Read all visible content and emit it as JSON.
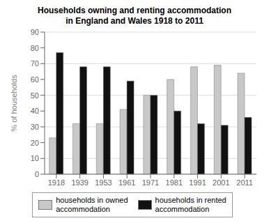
{
  "chart_data": {
    "type": "bar",
    "title": "Households owning and renting accommodation\nin England and Wales 1918 to 2011",
    "categories": [
      "1918",
      "1939",
      "1953",
      "1961",
      "1971",
      "1981",
      "1991",
      "2001",
      "2011"
    ],
    "series": [
      {
        "name": "households in owned\naccommodation",
        "color": "#c8c8c8",
        "values": [
          23,
          32,
          32,
          41,
          50,
          60,
          68,
          69,
          64
        ]
      },
      {
        "name": "households in rented\naccommodation",
        "color": "#111111",
        "values": [
          77,
          68,
          68,
          59,
          50,
          40,
          32,
          31,
          36
        ]
      }
    ],
    "ylabel": "% of households",
    "ylim": [
      0,
      90
    ],
    "yticks": [
      0,
      10,
      20,
      30,
      40,
      50,
      60,
      70,
      80,
      90
    ],
    "grid": true,
    "legend": "bottom"
  }
}
